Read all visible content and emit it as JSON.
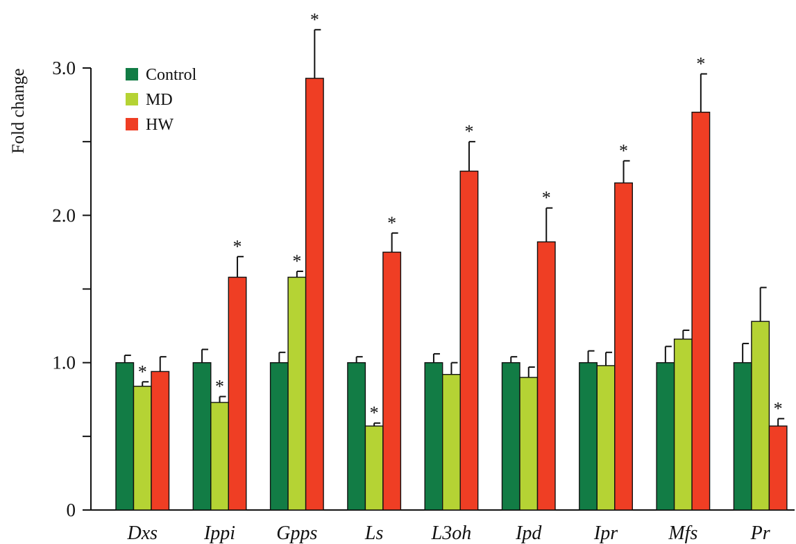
{
  "chart_data": {
    "type": "bar",
    "ylabel": "Fold change",
    "ylim": [
      0,
      3.0
    ],
    "y_ticks": [
      {
        "value": 0,
        "label": "0"
      },
      {
        "value": 0.5,
        "label": ""
      },
      {
        "value": 1.0,
        "label": "1.0"
      },
      {
        "value": 1.5,
        "label": ""
      },
      {
        "value": 2.0,
        "label": "2.0"
      },
      {
        "value": 2.5,
        "label": ""
      },
      {
        "value": 3.0,
        "label": "3.0"
      }
    ],
    "categories": [
      "Dxs",
      "Ippi",
      "Gpps",
      "Ls",
      "L3oh",
      "Ipd",
      "Ipr",
      "Mfs",
      "Pr"
    ],
    "series": [
      {
        "name": "Control",
        "color": "#127c45",
        "values": [
          1.0,
          1.0,
          1.0,
          1.0,
          1.0,
          1.0,
          1.0,
          1.0,
          1.0
        ],
        "errors": [
          0.05,
          0.09,
          0.07,
          0.04,
          0.06,
          0.04,
          0.08,
          0.11,
          0.13
        ],
        "significant": [
          false,
          false,
          false,
          false,
          false,
          false,
          false,
          false,
          false
        ]
      },
      {
        "name": "MD",
        "color": "#b5d334",
        "values": [
          0.84,
          0.73,
          1.58,
          0.57,
          0.92,
          0.9,
          0.98,
          1.16,
          1.28
        ],
        "errors": [
          0.03,
          0.04,
          0.04,
          0.02,
          0.08,
          0.07,
          0.09,
          0.06,
          0.23
        ],
        "significant": [
          true,
          true,
          true,
          true,
          false,
          false,
          false,
          false,
          false
        ]
      },
      {
        "name": "HW",
        "color": "#ef3e24",
        "values": [
          0.94,
          1.58,
          2.93,
          1.75,
          2.3,
          1.82,
          2.22,
          2.7,
          0.57
        ],
        "errors": [
          0.1,
          0.14,
          0.33,
          0.13,
          0.2,
          0.23,
          0.15,
          0.26,
          0.05
        ],
        "significant": [
          false,
          true,
          true,
          true,
          true,
          true,
          true,
          true,
          true
        ]
      }
    ],
    "significance_marker": "*",
    "legend_position": "top-left",
    "grid": false
  }
}
